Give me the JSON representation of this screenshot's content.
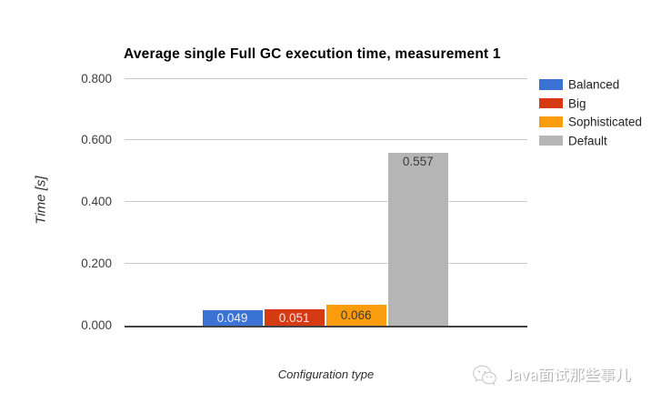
{
  "chart_data": {
    "type": "bar",
    "title": "Average single Full GC execution time, measurement 1",
    "xlabel": "Configuration type",
    "ylabel": "Time [s]",
    "ylim": [
      0,
      0.8
    ],
    "ytick_labels": [
      "0.000",
      "0.200",
      "0.400",
      "0.600",
      "0.800"
    ],
    "grid": true,
    "legend_position": "right",
    "categories": [
      "Configuration type"
    ],
    "series": [
      {
        "name": "Balanced",
        "value": 0.049,
        "label": "0.049",
        "color": "#3b73d4",
        "label_color": "#e8f0fb"
      },
      {
        "name": "Big",
        "value": 0.051,
        "label": "0.051",
        "color": "#d53a13",
        "label_color": "#f7e4de"
      },
      {
        "name": "Sophisticated",
        "value": 0.066,
        "label": "0.066",
        "color": "#f99d0f",
        "label_color": "#43392a"
      },
      {
        "name": "Default",
        "value": 0.557,
        "label": "0.557",
        "color": "#b5b5b5",
        "label_color": "#3a3a3a"
      }
    ]
  },
  "watermark": {
    "icon": "wechat-logo",
    "text": "Java面试那些事儿",
    "color": "#cccccc"
  },
  "colors": {
    "background": "#ffffff",
    "gridline": "#cccccc",
    "axis_line": "#424242",
    "title_text": "#000000",
    "tick_text": "#3d3d3d",
    "axis_title_text": "#2e2e2e",
    "legend_text": "#222222"
  }
}
